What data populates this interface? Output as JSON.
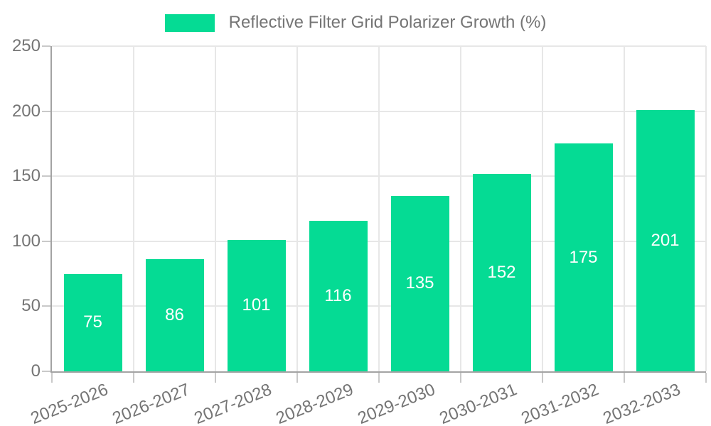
{
  "legend": {
    "label": "Reflective Filter Grid Polarizer Growth (%)",
    "swatch_color": "#05db94"
  },
  "chart_data": {
    "type": "bar",
    "title": "Reflective Filter Grid Polarizer Growth (%)",
    "categories": [
      "2025-2026",
      "2026-2027",
      "2027-2028",
      "2028-2029",
      "2029-2030",
      "2030-2031",
      "2031-2032",
      "2032-2033"
    ],
    "values": [
      75,
      86,
      101,
      116,
      135,
      152,
      175,
      201
    ],
    "xlabel": "",
    "ylabel": "",
    "ylim": [
      0,
      250
    ],
    "yticks": [
      0,
      50,
      100,
      150,
      200,
      250
    ],
    "grid": true,
    "legend_position": "top-center",
    "bar_color": "#05db94",
    "value_label_color": "#ffffff",
    "axis_text_color": "#757575"
  }
}
